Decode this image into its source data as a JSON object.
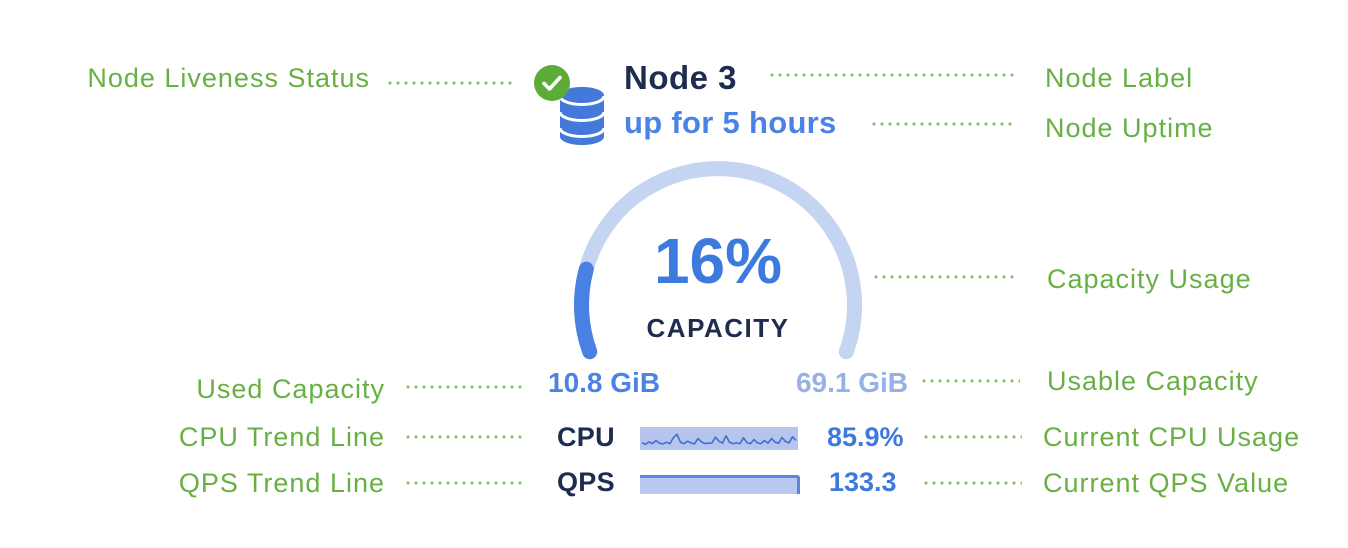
{
  "node_panel": {
    "status_icon": "check-circle-icon",
    "node_icon": "database-icon",
    "label": "Node 3",
    "uptime": "up for 5 hours",
    "capacity": {
      "percent": 16,
      "percent_label": "16%",
      "caption": "CAPACITY",
      "used": "10.8 GiB",
      "usable": "69.1 GiB"
    },
    "cpu": {
      "label": "CPU",
      "value": "85.9%",
      "trend": [
        0.3,
        0.22,
        0.36,
        0.26,
        0.44,
        0.28,
        0.24,
        0.34,
        0.26,
        0.62,
        0.8,
        0.34,
        0.26,
        0.4,
        0.3,
        0.24,
        0.56,
        0.36,
        0.26,
        0.28,
        0.3,
        0.64,
        0.4,
        0.28,
        0.72,
        0.34,
        0.26,
        0.3,
        0.26,
        0.6,
        0.32,
        0.26,
        0.5,
        0.3,
        0.26,
        0.44,
        0.28,
        0.56,
        0.34,
        0.28,
        0.62,
        0.38,
        0.3,
        0.66,
        0.44
      ]
    },
    "qps": {
      "label": "QPS",
      "value": "133.3",
      "trend": "flat-high"
    }
  },
  "annotations": {
    "left": [
      {
        "label": "Node Liveness Status"
      },
      {
        "label": "Used Capacity"
      },
      {
        "label": "CPU Trend Line"
      },
      {
        "label": "QPS Trend Line"
      }
    ],
    "right": [
      {
        "label": "Node Label"
      },
      {
        "label": "Node Uptime"
      },
      {
        "label": "Capacity Usage"
      },
      {
        "label": "Usable Capacity"
      },
      {
        "label": "Current CPU Usage"
      },
      {
        "label": "Current QPS Value"
      }
    ]
  },
  "colors": {
    "annotation_green": "#68b043",
    "navy_text": "#1e2c4e",
    "blue_text": "#3d7add",
    "uptime_blue": "#4a82e8",
    "usable_light_blue": "#97b1e4",
    "arc_track": "#c5d4f1",
    "arc_fill": "#4a80e2",
    "spark_bg": "#b7c4ec",
    "spark_line": "#3f6fd6",
    "bar_fill": "#bac9ef",
    "bar_edge": "#5b86dd",
    "status_green": "#5cac39",
    "db_blue": "#4478d9"
  }
}
